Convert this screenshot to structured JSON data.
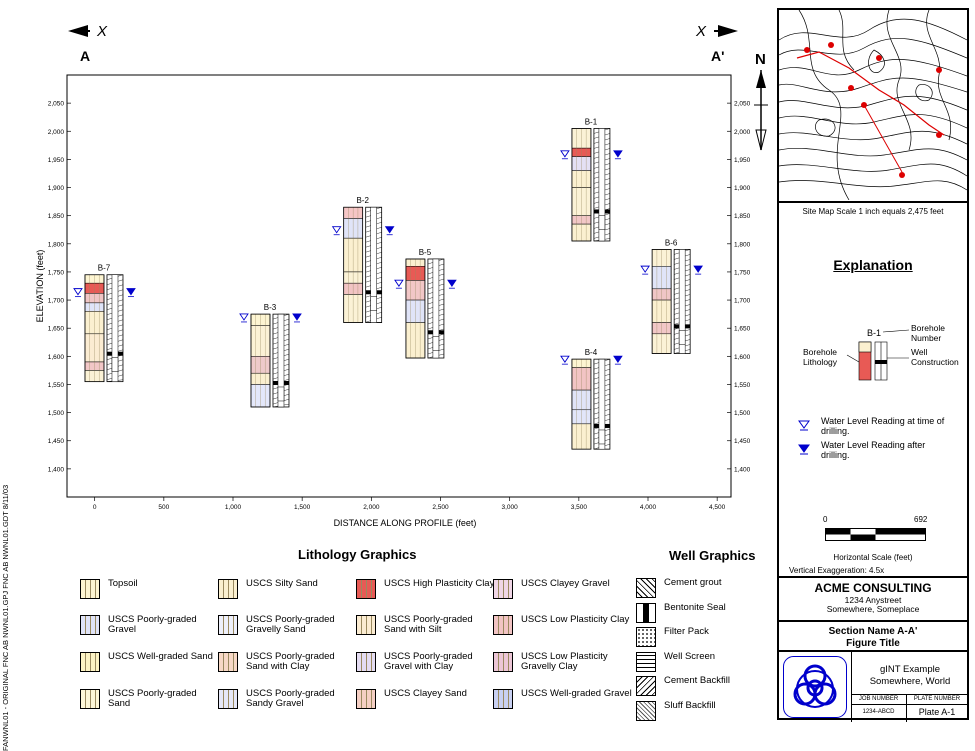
{
  "vertical_stamp": "FANWNL01 - ORIGINAL  FNC AB NWNL01.GPJ  FNC AB NWNL01.GDT  8/11/03",
  "section": {
    "left_arrow_label": "X",
    "right_arrow_label": "X",
    "left_end": "A",
    "right_end": "A'",
    "north_label": "N"
  },
  "chart_data": {
    "type": "table",
    "ylabel": "ELEVATION (feet)",
    "xlabel": "DISTANCE ALONG PROFILE (feet)",
    "xlim": [
      -200,
      4600
    ],
    "ylim": [
      1350,
      2100
    ],
    "x_ticks": [
      {
        "v": 0,
        "t": "0"
      },
      {
        "v": 500,
        "t": "500"
      },
      {
        "v": 1000,
        "t": "1,000"
      },
      {
        "v": 1500,
        "t": "1,500"
      },
      {
        "v": 2000,
        "t": "2,000"
      },
      {
        "v": 2500,
        "t": "2,500"
      },
      {
        "v": 3000,
        "t": "3,000"
      },
      {
        "v": 3500,
        "t": "3,500"
      },
      {
        "v": 4000,
        "t": "4,000"
      },
      {
        "v": 4500,
        "t": "4,500"
      }
    ],
    "y_ticks": [
      {
        "v": 1400,
        "t": "1,400"
      },
      {
        "v": 1450,
        "t": "1,450"
      },
      {
        "v": 1500,
        "t": "1,500"
      },
      {
        "v": 1550,
        "t": "1,550"
      },
      {
        "v": 1600,
        "t": "1,600"
      },
      {
        "v": 1650,
        "t": "1,650"
      },
      {
        "v": 1700,
        "t": "1,700"
      },
      {
        "v": 1750,
        "t": "1,750"
      },
      {
        "v": 1800,
        "t": "1,800"
      },
      {
        "v": 1850,
        "t": "1,850"
      },
      {
        "v": 1900,
        "t": "1,900"
      },
      {
        "v": 1950,
        "t": "1,950"
      },
      {
        "v": 2000,
        "t": "2,000"
      },
      {
        "v": 2050,
        "t": "2,050"
      }
    ],
    "boreholes": [
      {
        "name": "B-7",
        "x": -70,
        "top": 1745,
        "bottom": 1555,
        "wl": 1715,
        "layers": [
          {
            "t": 1745,
            "b": 1730,
            "c": "#fdf5d2"
          },
          {
            "t": 1730,
            "b": 1712,
            "c": "#e85a55"
          },
          {
            "t": 1712,
            "b": 1695,
            "c": "#f0c6c6"
          },
          {
            "t": 1695,
            "b": 1680,
            "c": "#dfe4f8"
          },
          {
            "t": 1680,
            "b": 1640,
            "c": "#fbf0d0"
          },
          {
            "t": 1640,
            "b": 1590,
            "c": "#fbecd2"
          },
          {
            "t": 1590,
            "b": 1575,
            "c": "#f2c7c7"
          },
          {
            "t": 1575,
            "b": 1555,
            "c": "#fbf2d6"
          }
        ]
      },
      {
        "name": "B-3",
        "x": 1130,
        "top": 1675,
        "bottom": 1510,
        "wl": 1670,
        "layers": [
          {
            "t": 1675,
            "b": 1655,
            "c": "#fdf5d2"
          },
          {
            "t": 1655,
            "b": 1600,
            "c": "#fbf2d6"
          },
          {
            "t": 1600,
            "b": 1570,
            "c": "#eecaca"
          },
          {
            "t": 1570,
            "b": 1550,
            "c": "#fbf0d0"
          },
          {
            "t": 1550,
            "b": 1510,
            "c": "#e4e8fb"
          }
        ]
      },
      {
        "name": "B-2",
        "x": 1800,
        "top": 1865,
        "bottom": 1660,
        "wl": 1825,
        "layers": [
          {
            "t": 1865,
            "b": 1845,
            "c": "#f5c6c6"
          },
          {
            "t": 1845,
            "b": 1810,
            "c": "#e0e4f8"
          },
          {
            "t": 1810,
            "b": 1750,
            "c": "#fbf0d0"
          },
          {
            "t": 1750,
            "b": 1730,
            "c": "#fbf2d6"
          },
          {
            "t": 1730,
            "b": 1710,
            "c": "#f2c4c4"
          },
          {
            "t": 1710,
            "b": 1660,
            "c": "#fbf2d6"
          }
        ]
      },
      {
        "name": "B-5",
        "x": 2250,
        "top": 1773,
        "bottom": 1597,
        "wl": 1730,
        "layers": [
          {
            "t": 1773,
            "b": 1760,
            "c": "#fbf0d0"
          },
          {
            "t": 1760,
            "b": 1735,
            "c": "#e85a55"
          },
          {
            "t": 1735,
            "b": 1700,
            "c": "#f2c7c7"
          },
          {
            "t": 1700,
            "b": 1660,
            "c": "#e0e4f8"
          },
          {
            "t": 1660,
            "b": 1597,
            "c": "#fbf0d0"
          }
        ]
      },
      {
        "name": "B-1",
        "x": 3450,
        "top": 2005,
        "bottom": 1805,
        "wl": 1960,
        "layers": [
          {
            "t": 2005,
            "b": 1970,
            "c": "#fbf2d6"
          },
          {
            "t": 1970,
            "b": 1955,
            "c": "#e85a55"
          },
          {
            "t": 1955,
            "b": 1930,
            "c": "#e4e0f4"
          },
          {
            "t": 1930,
            "b": 1900,
            "c": "#fbf0d0"
          },
          {
            "t": 1900,
            "b": 1850,
            "c": "#fbf2d6"
          },
          {
            "t": 1850,
            "b": 1835,
            "c": "#f2c7c7"
          },
          {
            "t": 1835,
            "b": 1805,
            "c": "#fbf0d0"
          }
        ]
      },
      {
        "name": "B-4",
        "x": 3450,
        "top": 1595,
        "bottom": 1435,
        "wl": 1595,
        "layers": [
          {
            "t": 1595,
            "b": 1580,
            "c": "#fdf5d2"
          },
          {
            "t": 1580,
            "b": 1540,
            "c": "#f2c4c4"
          },
          {
            "t": 1540,
            "b": 1505,
            "c": "#e0e4f8"
          },
          {
            "t": 1505,
            "b": 1480,
            "c": "#e2e6fa"
          },
          {
            "t": 1480,
            "b": 1435,
            "c": "#fbf0d0"
          }
        ]
      },
      {
        "name": "B-6",
        "x": 4030,
        "top": 1790,
        "bottom": 1605,
        "wl": 1755,
        "layers": [
          {
            "t": 1790,
            "b": 1760,
            "c": "#fbf2d6"
          },
          {
            "t": 1760,
            "b": 1720,
            "c": "#e0e4f8"
          },
          {
            "t": 1720,
            "b": 1700,
            "c": "#f0c6c6"
          },
          {
            "t": 1700,
            "b": 1660,
            "c": "#fbf0d0"
          },
          {
            "t": 1660,
            "b": 1640,
            "c": "#f2c7c7"
          },
          {
            "t": 1640,
            "b": 1605,
            "c": "#fbf2d6"
          }
        ]
      }
    ]
  },
  "lithology": {
    "title": "Lithology Graphics",
    "items": [
      {
        "label": "Topsoil",
        "color": "#fdf5d2"
      },
      {
        "label": "USCS Poorly-graded Gravel",
        "color": "#e0e4f8"
      },
      {
        "label": "USCS Well-graded Sand",
        "color": "#fcf3c4"
      },
      {
        "label": "USCS Poorly-graded Sand",
        "color": "#fdf7d8"
      },
      {
        "label": "USCS Silty Sand",
        "color": "#fbf0d0"
      },
      {
        "label": "USCS Poorly-graded Gravelly Sand",
        "color": "#eef0fb"
      },
      {
        "label": "USCS Poorly-graded Sand with Clay",
        "color": "#f7d8c6"
      },
      {
        "label": "USCS Poorly-graded Sandy Gravel",
        "color": "#e6e8f8"
      },
      {
        "label": "USCS High Plasticity Clay",
        "color": "#e85a55"
      },
      {
        "label": "USCS Poorly-graded Sand with Silt",
        "color": "#fbecd2"
      },
      {
        "label": "USCS Poorly-graded Gravel with Clay",
        "color": "#e4dcf2"
      },
      {
        "label": "USCS Clayey Sand",
        "color": "#f5cfc4"
      },
      {
        "label": "USCS Clayey Gravel",
        "color": "#f0d6e6"
      },
      {
        "label": "USCS Low Plasticity Clay",
        "color": "#f2c4c4"
      },
      {
        "label": "USCS Low Plasticity Gravelly Clay",
        "color": "#ecc6d6"
      },
      {
        "label": "USCS Well-graded Gravel",
        "color": "#c8d0f2"
      }
    ]
  },
  "well": {
    "title": "Well Graphics",
    "items": [
      {
        "label": "Cement grout"
      },
      {
        "label": "Bentonite Seal"
      },
      {
        "label": "Filter Pack"
      },
      {
        "label": "Well Screen"
      },
      {
        "label": "Cement Backfill"
      },
      {
        "label": "Sluff Backfill"
      }
    ]
  },
  "panel": {
    "map_scale_text": "Site Map Scale 1 inch equals 2,475 feet",
    "explanation_title": "Explanation",
    "example_borehole": "B-1",
    "borehole_number_label": "Borehole Number",
    "borehole_lithology_label": "Borehole Lithology",
    "well_construction_label": "Well Construction",
    "wl_drilling": "Water Level Reading at time of drilling.",
    "wl_after": "Water Level Reading after drilling.",
    "scale_min": "0",
    "scale_max": "692",
    "horizontal_scale": "Horizontal Scale (feet)",
    "vertical_exaggeration": "Vertical Exaggeration: 4.5x",
    "company": "ACME CONSULTING",
    "address1": "1234 Anystreet",
    "address2": "Somewhere, Someplace",
    "section_name": "Section Name A-A'",
    "figure_title": "Figure Title",
    "example1": "gINT Example",
    "example2": "Somewhere, World",
    "job_number_label": "JOB NUMBER",
    "plate_number_label": "PLATE NUMBER",
    "job_number": "1234-ABCD",
    "plate_number": "Plate A-1"
  }
}
